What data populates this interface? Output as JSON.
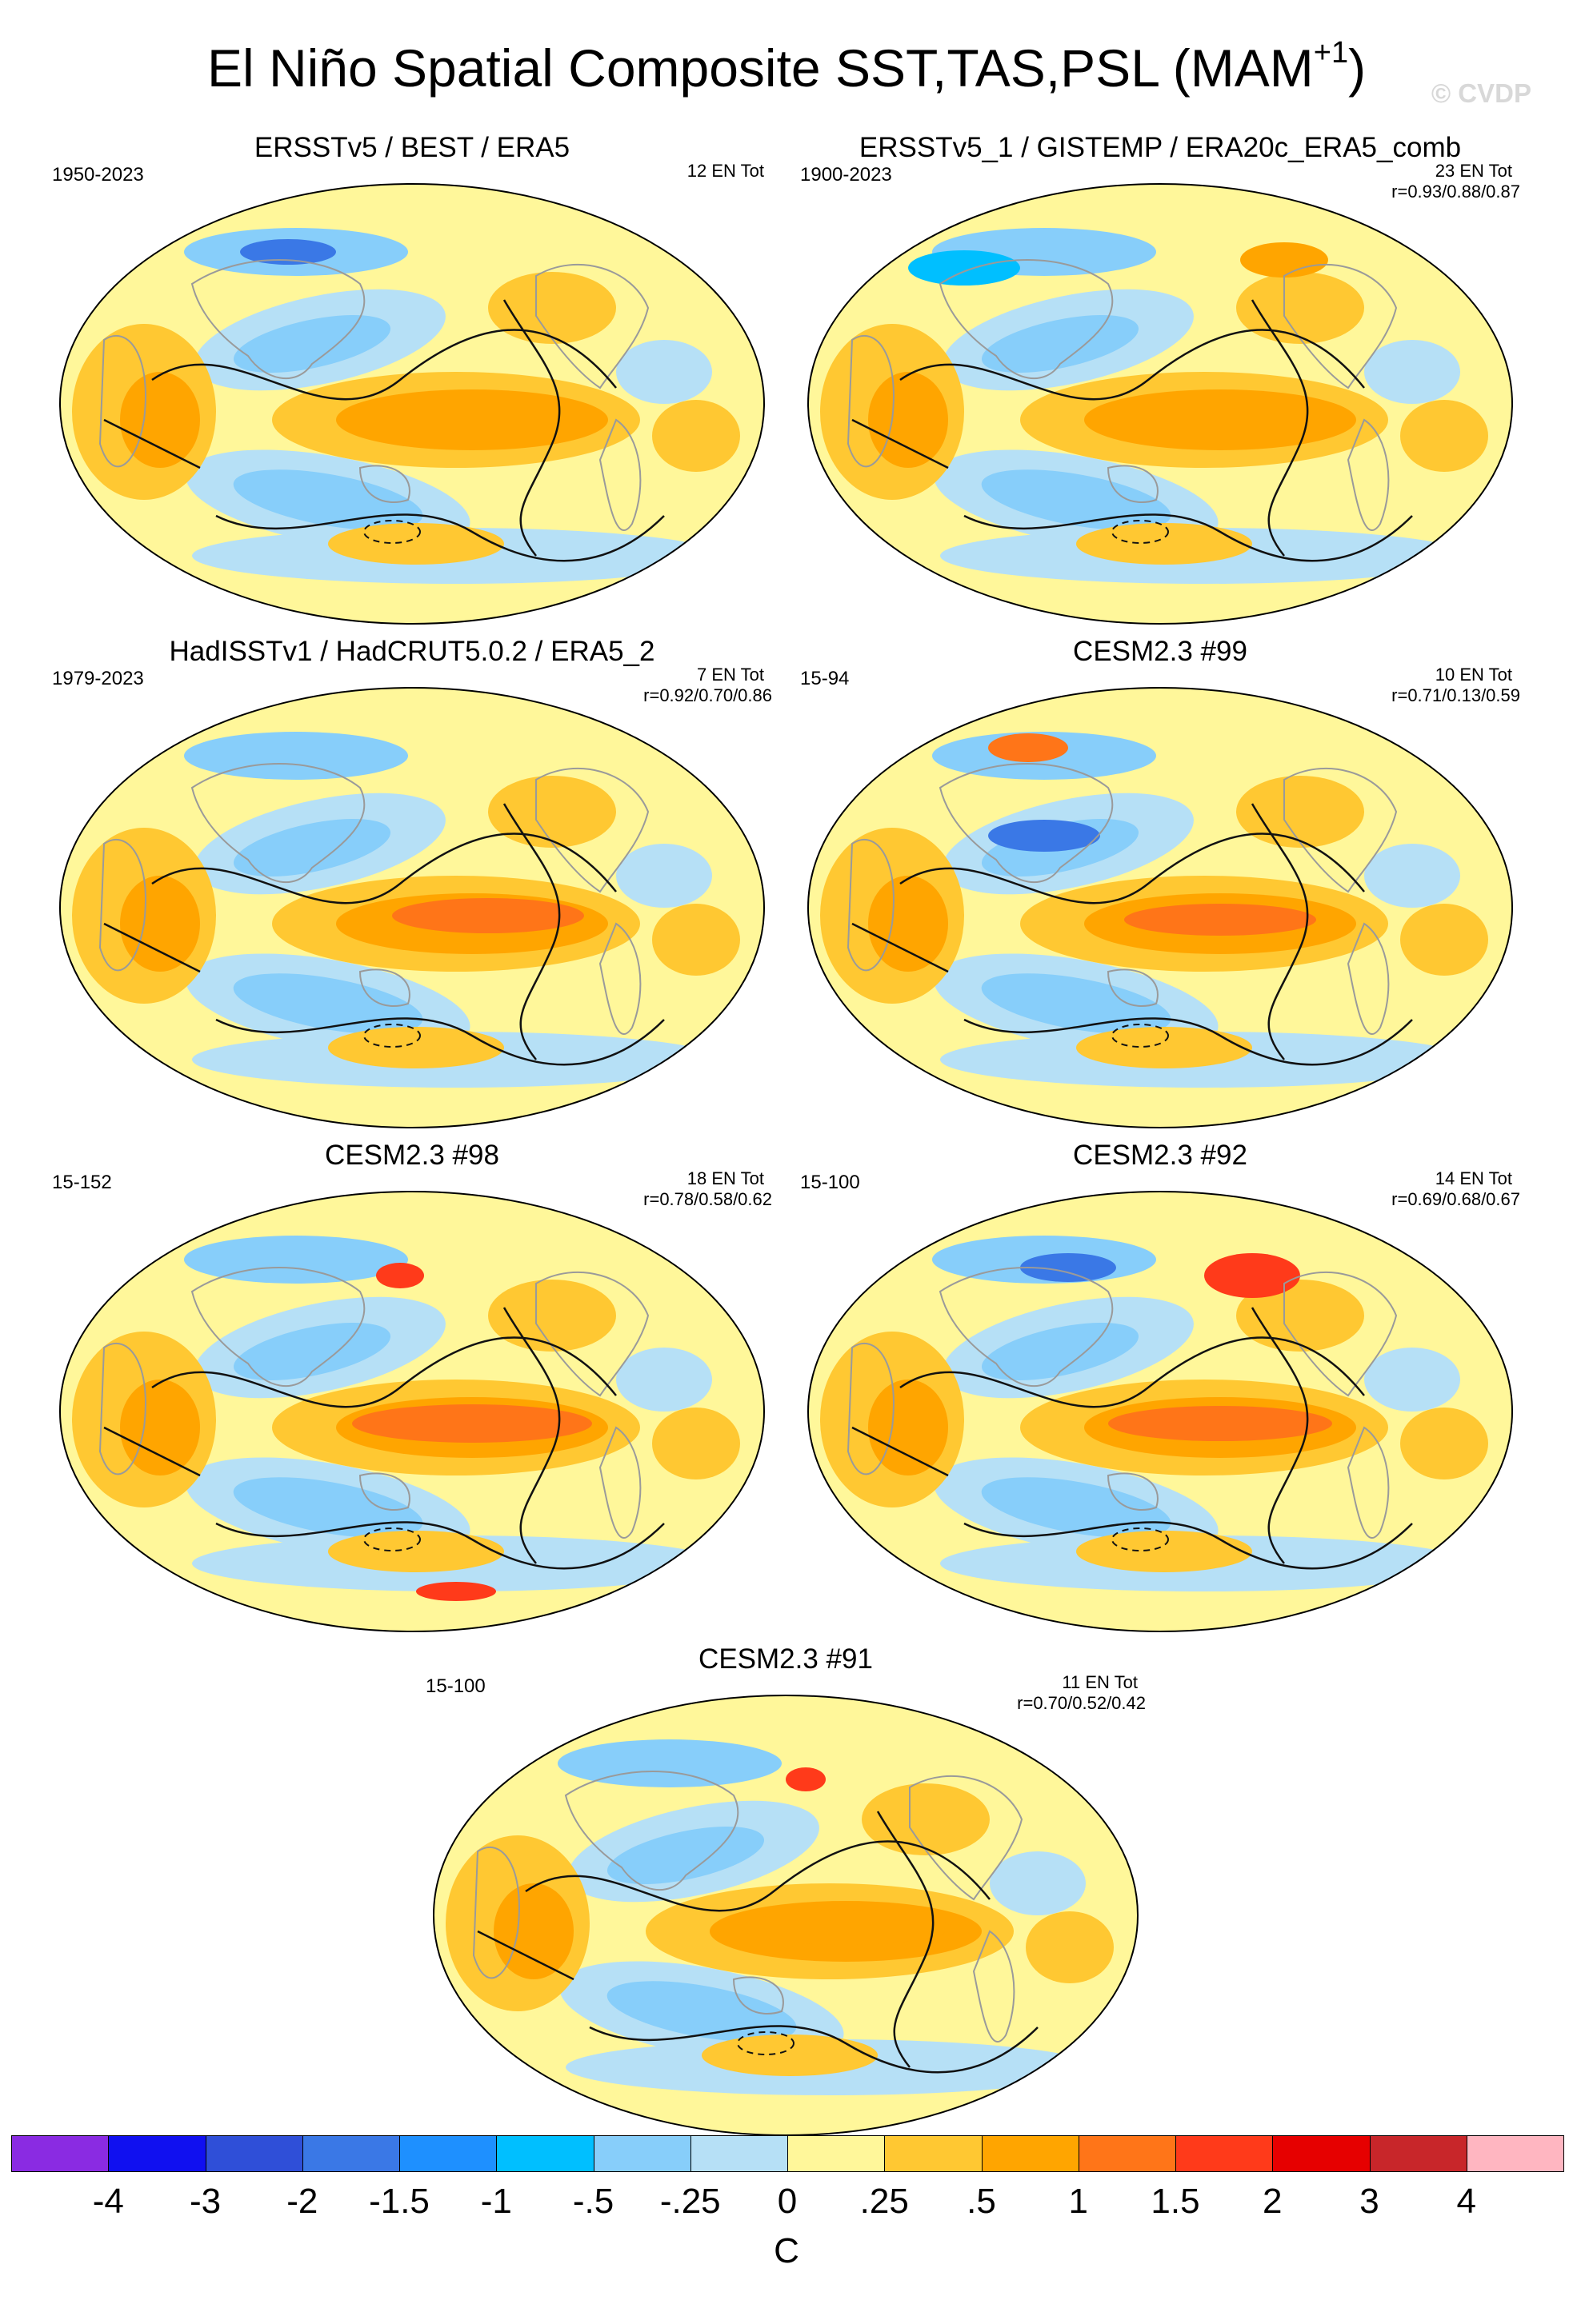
{
  "figure": {
    "title": "El Niño Spatial Composite SST,TAS,PSL (MAM",
    "title_superscript": "+1",
    "title_close": ")",
    "watermark": "© CVDP"
  },
  "panels": [
    {
      "id": "p1",
      "title": "ERSSTv5 / BEST / ERA5",
      "years": "1950-2023",
      "count": "12 EN Tot",
      "rvals": "",
      "pattern": "obs1"
    },
    {
      "id": "p2",
      "title": "ERSSTv5_1 / GISTEMP / ERA20c_ERA5_comb",
      "years": "1900-2023",
      "count": "23 EN Tot",
      "rvals": "r=0.93/0.88/0.87",
      "pattern": "obs2"
    },
    {
      "id": "p3",
      "title": "HadISSTv1 / HadCRUT5.0.2 / ERA5_2",
      "years": "1979-2023",
      "count": "7 EN Tot",
      "rvals": "r=0.92/0.70/0.86",
      "pattern": "obs3"
    },
    {
      "id": "p4",
      "title": "CESM2.3 #99",
      "years": "15-94",
      "count": "10 EN Tot",
      "rvals": "r=0.71/0.13/0.59",
      "pattern": "m99"
    },
    {
      "id": "p5",
      "title": "CESM2.3 #98",
      "years": "15-152",
      "count": "18 EN Tot",
      "rvals": "r=0.78/0.58/0.62",
      "pattern": "m98"
    },
    {
      "id": "p6",
      "title": "CESM2.3 #92",
      "years": "15-100",
      "count": "14 EN Tot",
      "rvals": "r=0.69/0.68/0.67",
      "pattern": "m92"
    },
    {
      "id": "p7",
      "title": "CESM2.3 #91",
      "years": "15-100",
      "count": "11 EN Tot",
      "rvals": "r=0.70/0.52/0.42",
      "pattern": "m91"
    }
  ],
  "colorbar": {
    "units": "C",
    "labels": [
      "-4",
      "-3",
      "-2",
      "-1.5",
      "-1",
      "-.5",
      "-.25",
      "0",
      ".25",
      ".5",
      "1",
      "1.5",
      "2",
      "3",
      "4"
    ],
    "colors": [
      "#8a2be2",
      "#1010f0",
      "#2f4fd8",
      "#3a78e6",
      "#1e90ff",
      "#00bfff",
      "#87cefa",
      "#b6e0f6",
      "#fff79a",
      "#ffc832",
      "#ffa500",
      "#ff7518",
      "#ff3a1a",
      "#e60000",
      "#c8262a",
      "#ffb6c1"
    ]
  },
  "map_colors": {
    "ocean_neutral": "#fff79a",
    "warm_1": "#ffc832",
    "warm_2": "#ffa500",
    "warm_3": "#ff7518",
    "hot": "#ff3a1a",
    "cool_1": "#b6e0f6",
    "cool_2": "#87cefa",
    "cool_3": "#00bfff",
    "cold": "#3a78e6",
    "land_outline": "#9a9a9a",
    "contour": "#111111"
  }
}
